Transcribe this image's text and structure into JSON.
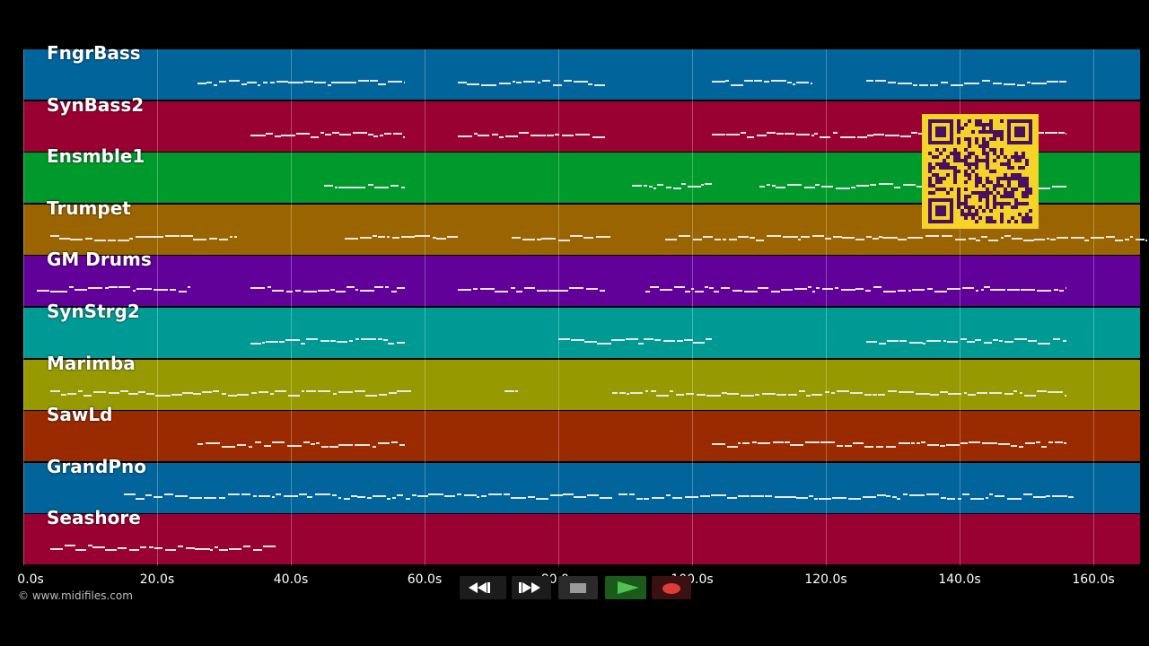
{
  "tracks": [
    {
      "name": "FngrBass",
      "color": "#01649a"
    },
    {
      "name": "SynBass2",
      "color": "#9a0133"
    },
    {
      "name": "Ensmble1",
      "color": "#009a2c"
    },
    {
      "name": "Trumpet",
      "color": "#9a6500"
    },
    {
      "name": "GM Drums",
      "color": "#62009a"
    },
    {
      "name": "SynStrg2",
      "color": "#009a94"
    },
    {
      "name": "Marimba",
      "color": "#969a00"
    },
    {
      "name": "SawLd",
      "color": "#9a2a00"
    },
    {
      "name": "GrandPno",
      "color": "#01649a"
    },
    {
      "name": "Seashore",
      "color": "#9a0133"
    }
  ],
  "timeline": {
    "ticks": [
      {
        "label": "0.0s",
        "seconds": 0
      },
      {
        "label": "20.0s",
        "seconds": 20
      },
      {
        "label": "40.0s",
        "seconds": 40
      },
      {
        "label": "60.0s",
        "seconds": 60
      },
      {
        "label": "80.0s",
        "seconds": 80
      },
      {
        "label": "100.0s",
        "seconds": 100
      },
      {
        "label": "120.0s",
        "seconds": 120
      },
      {
        "label": "140.0s",
        "seconds": 140
      },
      {
        "label": "160.0s",
        "seconds": 160
      }
    ],
    "max_seconds": 167
  },
  "copyright": "© www.midifiles.com",
  "transport": {
    "rewind_icon": "rewind-icon",
    "forward_icon": "fast-forward-icon",
    "stop_icon": "stop-icon",
    "play_icon": "play-icon",
    "record_icon": "record-icon",
    "play_color": "#2e8b2e",
    "record_color": "#e03b3b"
  },
  "qr_color": "#f5d327",
  "qr_ink": "#4a1060"
}
